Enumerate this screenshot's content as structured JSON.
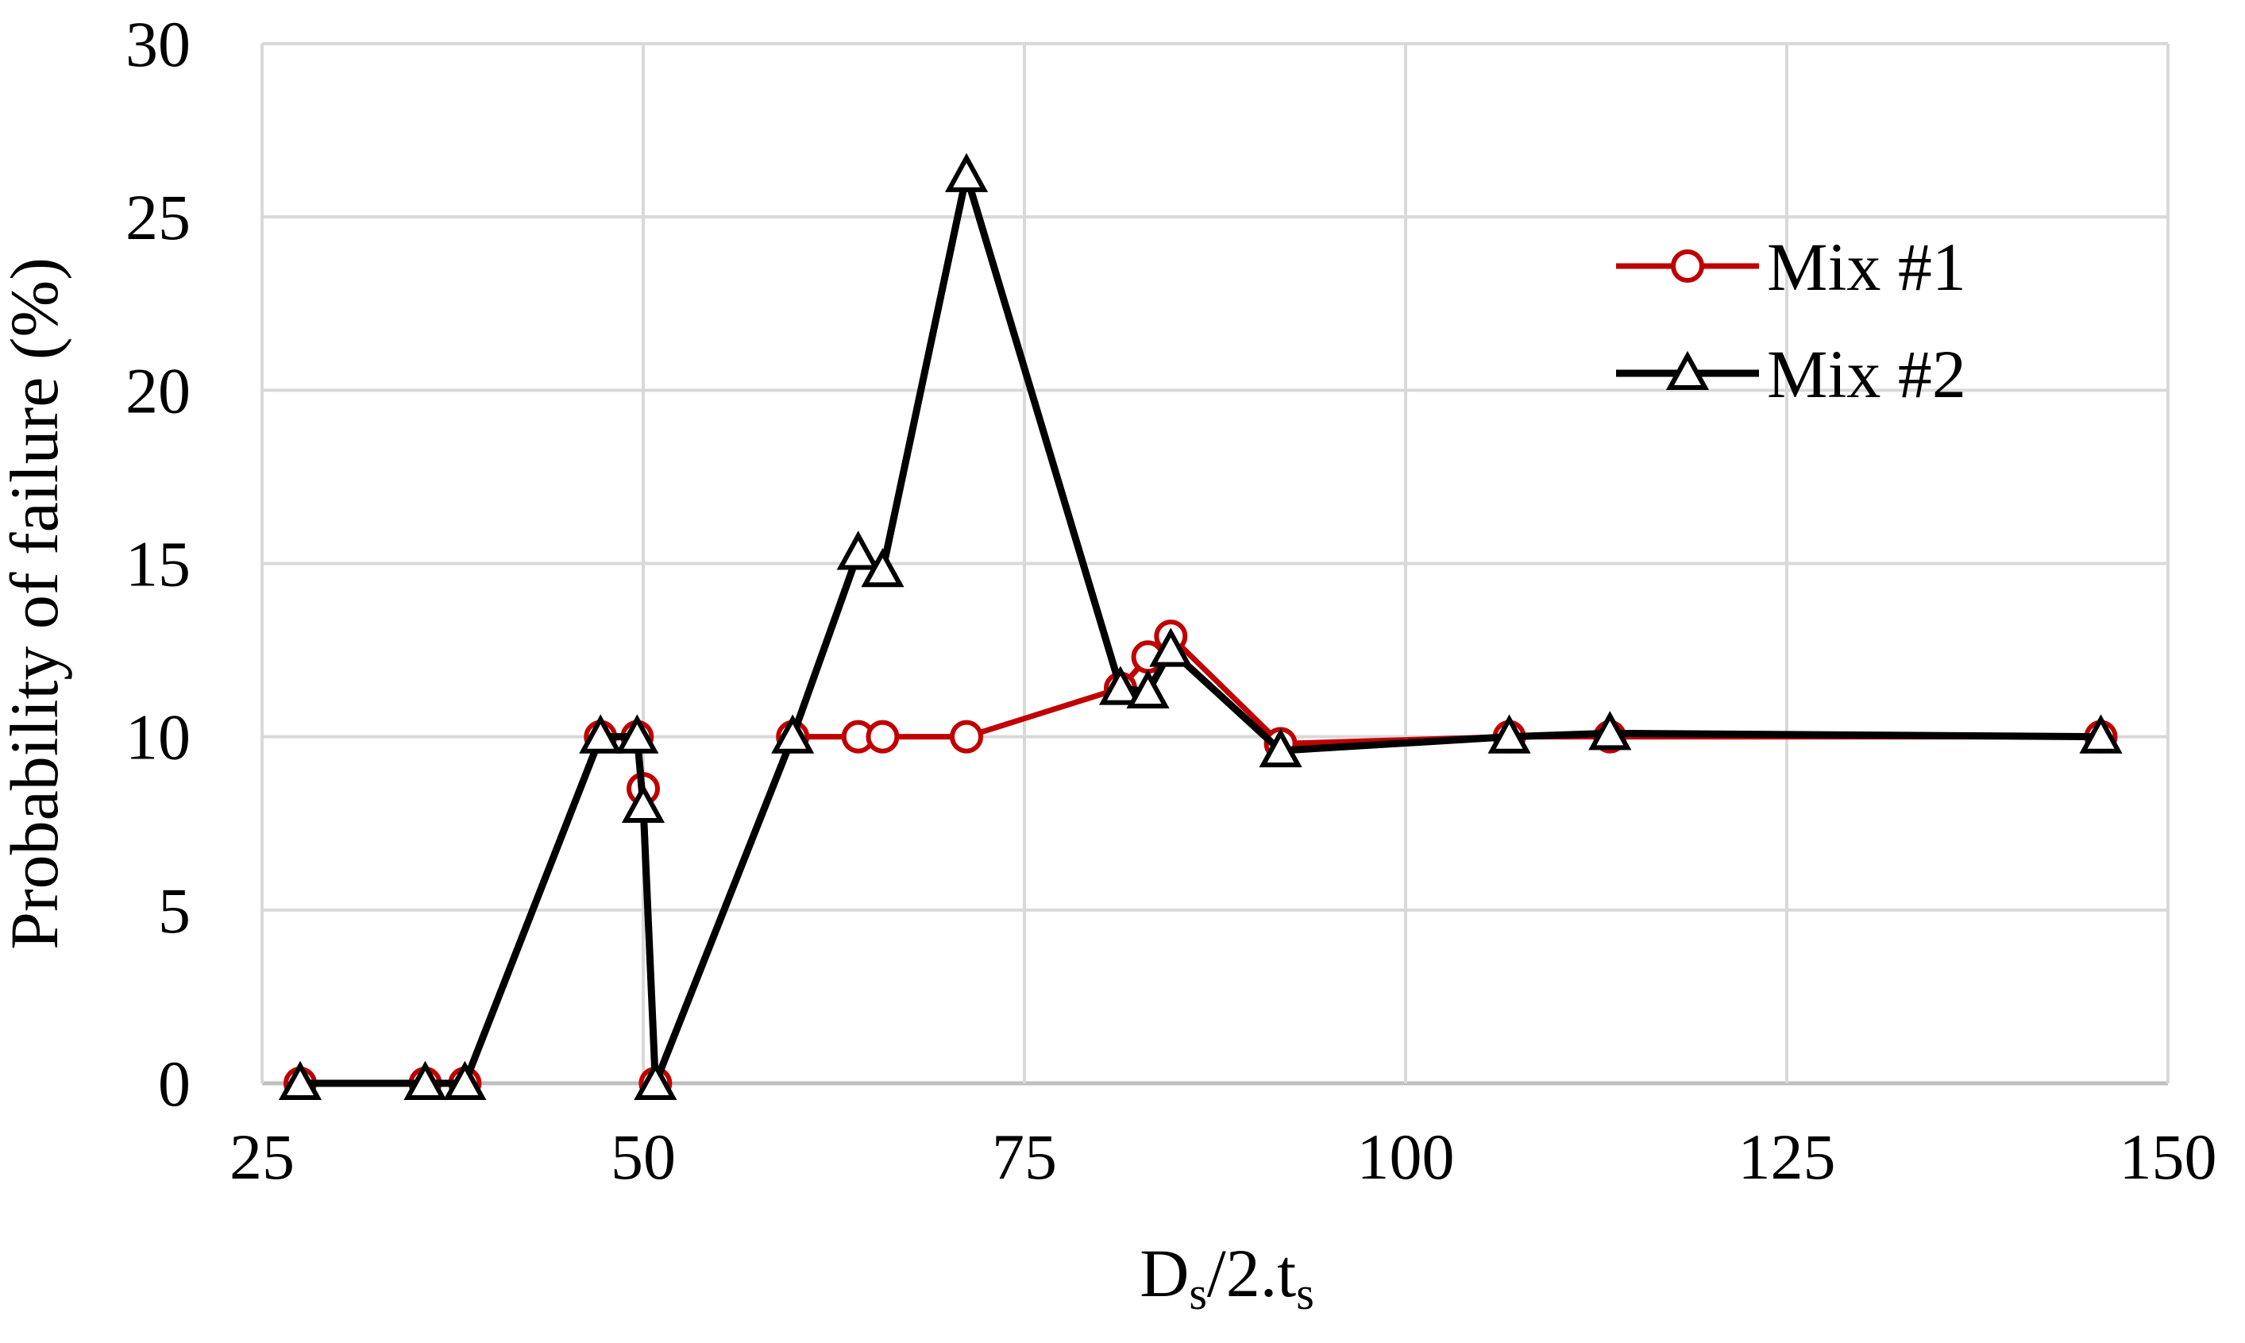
{
  "chart_data": {
    "type": "line",
    "title": "",
    "xlabel": "D",
    "xlabel_sub1": "s",
    "xlabel_mid": "/2.t",
    "xlabel_sub2": "s",
    "ylabel": "Probability of failure (%)",
    "xlim": [
      25,
      150
    ],
    "ylim": [
      0,
      30
    ],
    "xticks": [
      "25",
      "50",
      "75",
      "100",
      "125",
      "150"
    ],
    "yticks": [
      "0",
      "5",
      "10",
      "15",
      "20",
      "25",
      "30"
    ],
    "grid": true,
    "legend_position": "upper-right",
    "series": [
      {
        "name": "Mix #1",
        "color": "#c00000",
        "marker": "circle",
        "points": [
          [
            27.5,
            0
          ],
          [
            35.7,
            0
          ],
          [
            38.3,
            0
          ],
          [
            47.2,
            10
          ],
          [
            49.6,
            10
          ],
          [
            50.0,
            8.5
          ],
          [
            50.8,
            0
          ],
          [
            59.8,
            10
          ],
          [
            64.1,
            10
          ],
          [
            65.7,
            10
          ],
          [
            71.2,
            10
          ],
          [
            81.3,
            11.4
          ],
          [
            83.1,
            12.3
          ],
          [
            84.6,
            12.9
          ],
          [
            91.8,
            9.8
          ],
          [
            106.8,
            10.0
          ],
          [
            113.4,
            10.0
          ],
          [
            145.6,
            10.0
          ]
        ]
      },
      {
        "name": "Mix #2",
        "color": "#000000",
        "marker": "triangle",
        "points": [
          [
            27.5,
            0
          ],
          [
            35.7,
            0
          ],
          [
            38.3,
            0
          ],
          [
            47.2,
            10
          ],
          [
            49.6,
            10
          ],
          [
            50.0,
            8.0
          ],
          [
            50.8,
            0
          ],
          [
            59.8,
            10
          ],
          [
            64.1,
            15.3
          ],
          [
            65.7,
            14.8
          ],
          [
            71.2,
            26.2
          ],
          [
            81.3,
            11.4
          ],
          [
            83.1,
            11.3
          ],
          [
            84.6,
            12.5
          ],
          [
            91.8,
            9.6
          ],
          [
            106.8,
            10.0
          ],
          [
            113.4,
            10.1
          ],
          [
            145.6,
            10.0
          ]
        ]
      }
    ]
  }
}
